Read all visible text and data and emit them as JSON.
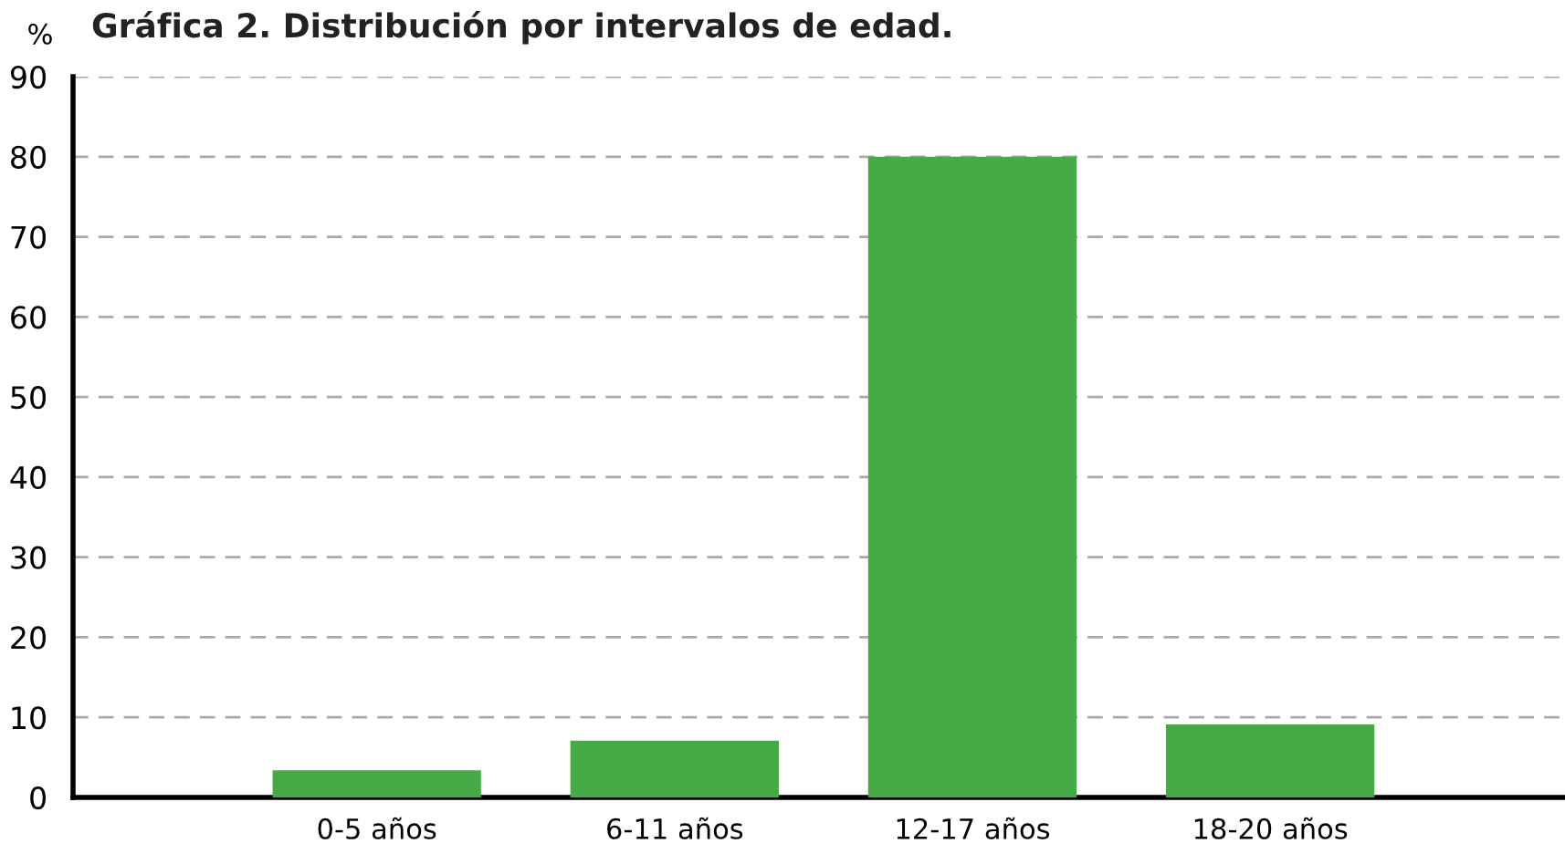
{
  "chart_data": {
    "type": "bar",
    "title": "Gráfica 2. Distribución por intervalos de edad.",
    "ylabel": "%",
    "categories": [
      "0-5 años",
      "6-11 años",
      "12-17 años",
      "18-20 años"
    ],
    "values": [
      3.4,
      7.1,
      80.0,
      9.1
    ],
    "color": "#46aa46",
    "ylim": [
      0,
      90
    ],
    "yticks": [
      0,
      10,
      20,
      30,
      40,
      50,
      60,
      70,
      80,
      90
    ],
    "grid": "y"
  }
}
